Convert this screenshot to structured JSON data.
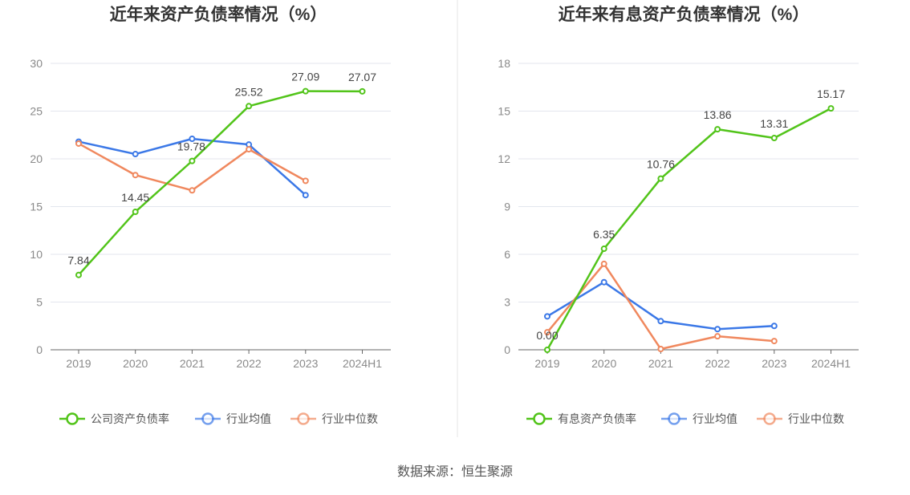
{
  "source_label": "数据来源：恒生聚源",
  "chart_data": [
    {
      "type": "line",
      "title": "近年来资产负债率情况（%）",
      "categories": [
        "2019",
        "2020",
        "2021",
        "2022",
        "2023",
        "2024H1"
      ],
      "y_ticks": [
        "0",
        "5",
        "10",
        "15",
        "20",
        "25",
        "30"
      ],
      "ylim": [
        0,
        30
      ],
      "grid": true,
      "legend_position": "bottom",
      "series": [
        {
          "name": "公司资产负债率",
          "color": "#52c41a",
          "values": [
            7.84,
            14.45,
            19.78,
            25.52,
            27.09,
            27.07
          ],
          "labels": [
            "7.84",
            "14.45",
            "19.78",
            "25.52",
            "27.09",
            "27.07"
          ]
        },
        {
          "name": "行业均值",
          "color": "#3b78e7",
          "values": [
            21.8,
            20.5,
            22.1,
            21.5,
            16.2,
            null
          ]
        },
        {
          "name": "行业中位数",
          "color": "#f0885e",
          "values": [
            21.6,
            18.3,
            16.7,
            21.0,
            17.7,
            null
          ]
        }
      ]
    },
    {
      "type": "line",
      "title": "近年来有息资产负债率情况（%）",
      "categories": [
        "2019",
        "2020",
        "2021",
        "2022",
        "2023",
        "2024H1"
      ],
      "y_ticks": [
        "0",
        "3",
        "6",
        "9",
        "12",
        "15",
        "18"
      ],
      "ylim": [
        0,
        18
      ],
      "grid": true,
      "legend_position": "bottom",
      "series": [
        {
          "name": "有息资产负债率",
          "color": "#52c41a",
          "values": [
            0.0,
            6.35,
            10.76,
            13.86,
            13.31,
            15.17
          ],
          "labels": [
            "0.00",
            "6.35",
            "10.76",
            "13.86",
            "13.31",
            "15.17"
          ]
        },
        {
          "name": "行业均值",
          "color": "#3b78e7",
          "values": [
            2.1,
            4.25,
            1.8,
            1.3,
            1.5,
            null
          ]
        },
        {
          "name": "行业中位数",
          "color": "#f0885e",
          "values": [
            1.1,
            5.4,
            0.05,
            0.85,
            0.55,
            null
          ]
        }
      ]
    }
  ]
}
